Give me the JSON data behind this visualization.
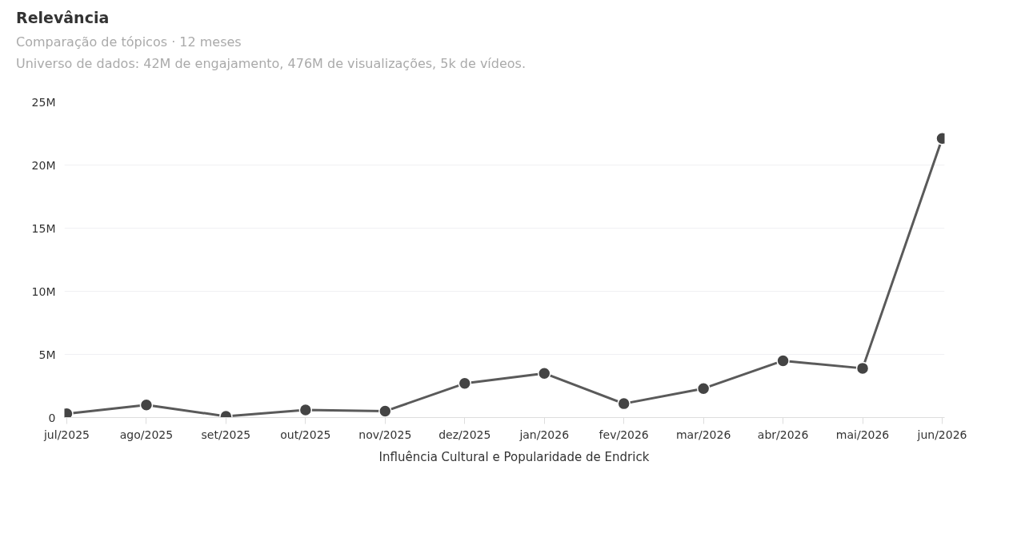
{
  "chart_data": {
    "type": "line",
    "title": "Relevância",
    "subtitle": "Comparação de tópicos · 12 meses",
    "annotations": [
      "Universo de dados: 42M de engajamento, 476M de visualizações, 5k de vídeos."
    ],
    "categories": [
      "jul/2025",
      "ago/2025",
      "set/2025",
      "out/2025",
      "nov/2025",
      "dez/2025",
      "jan/2026",
      "fev/2026",
      "mar/2026",
      "abr/2026",
      "mai/2026",
      "jun/2026"
    ],
    "series": [
      {
        "name": "Influência Cultural e Popularidade de Endrick",
        "color": "#444444",
        "values": [
          300000,
          1000000,
          100000,
          600000,
          500000,
          2700000,
          3500000,
          1100000,
          2300000,
          4500000,
          3900000,
          22100000
        ]
      }
    ],
    "ylim": [
      0,
      25000000
    ],
    "yticks": [
      {
        "value": 0,
        "label": "0"
      },
      {
        "value": 5000000,
        "label": "5M"
      },
      {
        "value": 10000000,
        "label": "10M"
      },
      {
        "value": 15000000,
        "label": "15M"
      },
      {
        "value": 20000000,
        "label": "20M"
      },
      {
        "value": 25000000,
        "label": "25M"
      }
    ],
    "grid": "y",
    "legend": "bottom",
    "marker": "circle",
    "line_style": "solid"
  }
}
